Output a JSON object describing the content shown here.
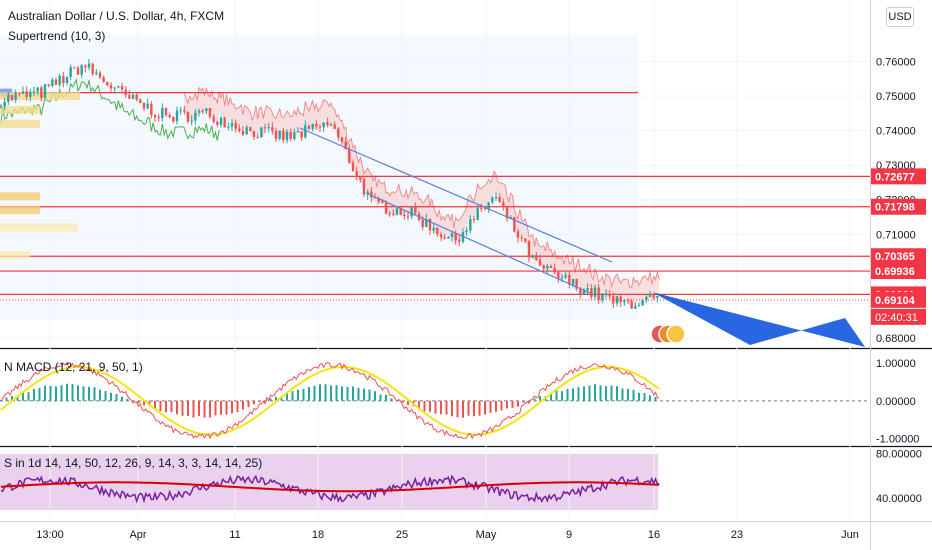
{
  "header": {
    "title": "Australian Dollar / U.S. Dollar, 4h, FXCM",
    "indicator": "Supertrend (10, 3)",
    "currency": "USD"
  },
  "colors": {
    "up": "#26a69a",
    "down": "#ef5350",
    "line_red": "#f23645",
    "supertrend_green": "#4caf50",
    "channel_blue": "#5b7fd6",
    "arrow_blue": "#1e5fe0",
    "signal_yellow": "#f5e50f",
    "rsi_purple": "#7b1fa2",
    "rsi_band": "#e1bee7"
  },
  "chart_data": [
    {
      "type": "candlestick",
      "title": "Australian Dollar / U.S. Dollar, 4h, FXCM",
      "yaxis_ticks": [
        "0.76000",
        "0.75000",
        "0.74000",
        "0.73000",
        "0.72000",
        "0.71000",
        "0.70000",
        "0.69000",
        "0.68000"
      ],
      "ylim": [
        0.6771,
        0.7778
      ],
      "xaxis_ticks": [
        "13:00",
        "Apr",
        "11",
        "18",
        "25",
        "May",
        "9",
        "16",
        "23",
        "Jun"
      ],
      "x": [
        "Mar 29",
        "Apr 1",
        "Apr 4",
        "Apr 7",
        "Apr 10",
        "Apr 13",
        "Apr 16",
        "Apr 19",
        "Apr 22",
        "Apr 25",
        "Apr 28",
        "May 1",
        "May 4",
        "May 7",
        "May 10",
        "May 13",
        "May 16"
      ],
      "close": [
        0.749,
        0.751,
        0.759,
        0.75,
        0.744,
        0.745,
        0.74,
        0.738,
        0.742,
        0.719,
        0.716,
        0.708,
        0.721,
        0.701,
        0.695,
        0.69,
        0.691
      ],
      "horizontal_levels": [
        0.751,
        0.72677,
        0.71798,
        0.70365,
        0.69936,
        0.69261
      ],
      "price_labels": [
        {
          "text": "0.72677",
          "value": 0.72677
        },
        {
          "text": "0.71798",
          "value": 0.71798
        },
        {
          "text": "0.70365",
          "value": 0.70365
        },
        {
          "text": "0.69936",
          "value": 0.69936
        },
        {
          "text": "0.69261",
          "value": 0.69261
        },
        {
          "text": "0.69104",
          "value": 0.69104
        }
      ],
      "countdown": "02:40:31",
      "last_price": 0.69104,
      "legend": "Supertrend (10, 3)"
    },
    {
      "type": "line",
      "title": "N MACD (12, 21, 9, 50, 1)",
      "yaxis_ticks": [
        "1.00000",
        "0.00000",
        "-1.00000"
      ],
      "ylim": [
        -1.2,
        1.35
      ]
    },
    {
      "type": "line",
      "title": "S in 1d 14, 14, 50, 12, 26, 9, 14, 3, 3, 14, 14, 25)",
      "yaxis_ticks": [
        "80.00000",
        "40.00000"
      ],
      "ylim": [
        20,
        85
      ]
    }
  ]
}
